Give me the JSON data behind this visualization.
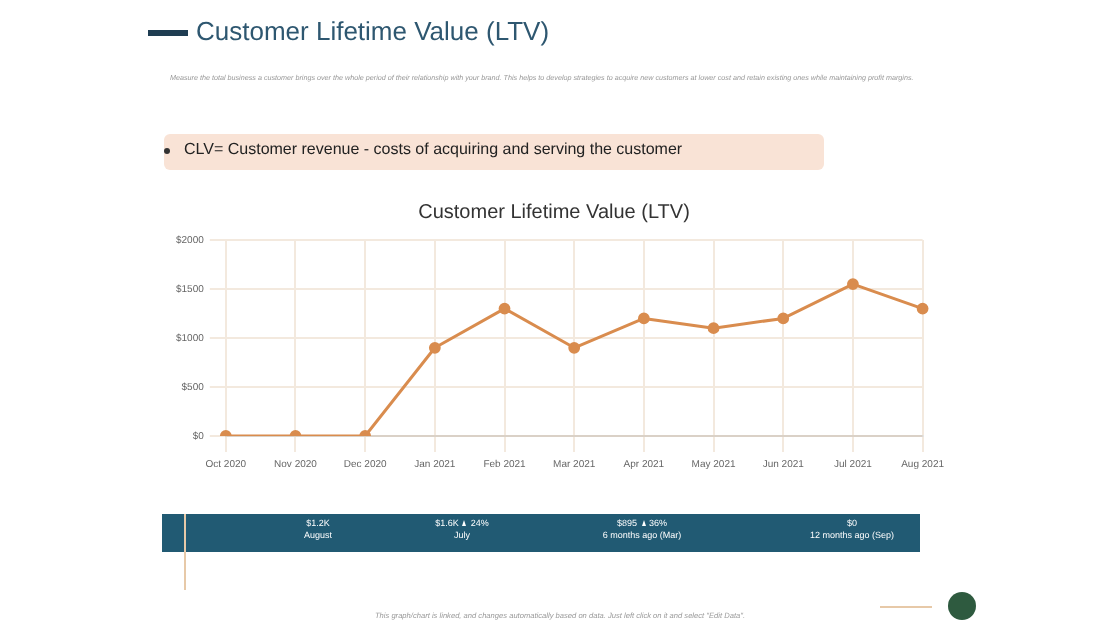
{
  "chart_data": {
    "type": "line",
    "title": "Customer Lifetime Value (LTV)",
    "categories": [
      "Oct 2020",
      "Nov 2020",
      "Dec 2020",
      "Jan 2021",
      "Feb 2021",
      "Mar 2021",
      "Apr 2021",
      "May 2021",
      "Jun 2021",
      "Jul 2021",
      "Aug 2021"
    ],
    "series": [
      {
        "color": "#d98c4e",
        "values": [
          0,
          0,
          0,
          900,
          1300,
          900,
          1200,
          1100,
          1200,
          1550,
          1300
        ]
      }
    ],
    "ylim": [
      0,
      2000
    ],
    "yticks": [
      {
        "value": 0,
        "label": "$0"
      },
      {
        "value": 500,
        "label": "$500"
      },
      {
        "value": 1000,
        "label": "$1000"
      },
      {
        "value": 1500,
        "label": "$1500"
      },
      {
        "value": 2000,
        "label": "$2000"
      }
    ],
    "grid": true,
    "legend": false,
    "marker": "circle",
    "line_style": "solid",
    "annotations": [
      "Customer Lifetime Value (LTV)",
      "Measure the total business a customer brings over the whole period of their relationship with your brand. This helps to develop strategies to acquire new customers at lower cost and retain existing ones while maintaining profit margins.",
      "CLV= Customer revenue - costs of acquiring and serving the customer",
      "$1.2K",
      "August",
      "$1.6K",
      "24%",
      "July",
      "$895",
      "36%",
      "6 months ago (Mar)",
      "$0",
      "12 months ago (Sep)",
      "This graph/chart is linked, and changes automatically based on data. Just left click on it and select \"Edit Data\"."
    ]
  }
}
